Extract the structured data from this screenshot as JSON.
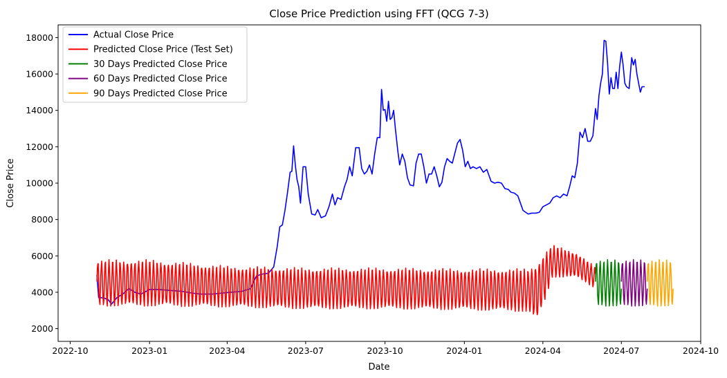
{
  "chart_data": {
    "type": "line",
    "title": "Close Price Prediction using FFT (QCG 7-3)",
    "xlabel": "Date",
    "ylabel": "Close Price",
    "xlim": [
      "2022-09-17",
      "2024-10-01"
    ],
    "ylim": [
      1300,
      18700
    ],
    "x_ticks": [
      "2022-10-01",
      "2023-01-01",
      "2023-04-01",
      "2023-07-01",
      "2023-10-01",
      "2024-01-01",
      "2024-04-01",
      "2024-07-01",
      "2024-10-01"
    ],
    "x_tick_labels": [
      "2022-10",
      "2023-01",
      "2023-04",
      "2023-07",
      "2023-10",
      "2024-01",
      "2024-04",
      "2024-07",
      "2024-10"
    ],
    "y_ticks": [
      2000,
      4000,
      6000,
      8000,
      10000,
      12000,
      14000,
      16000,
      18000
    ],
    "grid": false,
    "legend_position": "top-left",
    "series": [
      {
        "name": "Actual Close Price",
        "color": "#0000ff",
        "points": [
          [
            "2022-11-01",
            4950
          ],
          [
            "2022-11-03",
            3700
          ],
          [
            "2022-11-08",
            3700
          ],
          [
            "2022-11-14",
            3600
          ],
          [
            "2022-11-18",
            3350
          ],
          [
            "2022-11-24",
            3700
          ],
          [
            "2022-12-01",
            3900
          ],
          [
            "2022-12-08",
            4200
          ],
          [
            "2022-12-15",
            4000
          ],
          [
            "2022-12-22",
            3900
          ],
          [
            "2023-01-01",
            4150
          ],
          [
            "2023-01-12",
            4150
          ],
          [
            "2023-01-25",
            4100
          ],
          [
            "2023-02-08",
            4050
          ],
          [
            "2023-02-20",
            3950
          ],
          [
            "2023-03-01",
            3900
          ],
          [
            "2023-03-15",
            3900
          ],
          [
            "2023-03-25",
            3950
          ],
          [
            "2023-04-05",
            4000
          ],
          [
            "2023-04-18",
            4050
          ],
          [
            "2023-04-28",
            4200
          ],
          [
            "2023-05-05",
            4900
          ],
          [
            "2023-05-12",
            5000
          ],
          [
            "2023-05-19",
            5050
          ],
          [
            "2023-05-25",
            5400
          ],
          [
            "2023-05-29",
            6500
          ],
          [
            "2023-06-01",
            7600
          ],
          [
            "2023-06-04",
            7700
          ],
          [
            "2023-06-07",
            8500
          ],
          [
            "2023-06-10",
            9500
          ],
          [
            "2023-06-13",
            10600
          ],
          [
            "2023-06-15",
            10650
          ],
          [
            "2023-06-17",
            12050
          ],
          [
            "2023-06-19",
            11000
          ],
          [
            "2023-06-21",
            10200
          ],
          [
            "2023-06-23",
            9800
          ],
          [
            "2023-06-25",
            8900
          ],
          [
            "2023-06-28",
            10900
          ],
          [
            "2023-07-01",
            10900
          ],
          [
            "2023-07-04",
            9400
          ],
          [
            "2023-07-08",
            8300
          ],
          [
            "2023-07-12",
            8250
          ],
          [
            "2023-07-15",
            8550
          ],
          [
            "2023-07-19",
            8100
          ],
          [
            "2023-07-24",
            8200
          ],
          [
            "2023-07-28",
            8700
          ],
          [
            "2023-08-01",
            9400
          ],
          [
            "2023-08-04",
            8800
          ],
          [
            "2023-08-07",
            9200
          ],
          [
            "2023-08-11",
            9100
          ],
          [
            "2023-08-15",
            9800
          ],
          [
            "2023-08-18",
            10200
          ],
          [
            "2023-08-21",
            10900
          ],
          [
            "2023-08-24",
            10400
          ],
          [
            "2023-08-28",
            11950
          ],
          [
            "2023-09-01",
            11950
          ],
          [
            "2023-09-04",
            10800
          ],
          [
            "2023-09-07",
            10500
          ],
          [
            "2023-09-10",
            10650
          ],
          [
            "2023-09-13",
            11000
          ],
          [
            "2023-09-16",
            10500
          ],
          [
            "2023-09-19",
            11600
          ],
          [
            "2023-09-22",
            12500
          ],
          [
            "2023-09-25",
            12500
          ],
          [
            "2023-09-27",
            15150
          ],
          [
            "2023-09-29",
            14000
          ],
          [
            "2023-10-01",
            14050
          ],
          [
            "2023-10-03",
            13400
          ],
          [
            "2023-10-05",
            14500
          ],
          [
            "2023-10-07",
            13500
          ],
          [
            "2023-10-09",
            13600
          ],
          [
            "2023-10-11",
            14000
          ],
          [
            "2023-10-13",
            13000
          ],
          [
            "2023-10-16",
            11700
          ],
          [
            "2023-10-18",
            11000
          ],
          [
            "2023-10-21",
            11600
          ],
          [
            "2023-10-24",
            11200
          ],
          [
            "2023-10-27",
            10300
          ],
          [
            "2023-10-30",
            9900
          ],
          [
            "2023-11-03",
            9850
          ],
          [
            "2023-11-06",
            11100
          ],
          [
            "2023-11-09",
            11600
          ],
          [
            "2023-11-12",
            11600
          ],
          [
            "2023-11-15",
            10900
          ],
          [
            "2023-11-18",
            10000
          ],
          [
            "2023-11-21",
            10500
          ],
          [
            "2023-11-24",
            10500
          ],
          [
            "2023-11-27",
            10900
          ],
          [
            "2023-11-30",
            10400
          ],
          [
            "2023-12-03",
            9800
          ],
          [
            "2023-12-06",
            10050
          ],
          [
            "2023-12-09",
            10900
          ],
          [
            "2023-12-12",
            11350
          ],
          [
            "2023-12-15",
            11200
          ],
          [
            "2023-12-18",
            11100
          ],
          [
            "2023-12-21",
            11650
          ],
          [
            "2023-12-24",
            12200
          ],
          [
            "2023-12-27",
            12400
          ],
          [
            "2023-12-30",
            11800
          ],
          [
            "2024-01-02",
            10900
          ],
          [
            "2024-01-05",
            11200
          ],
          [
            "2024-01-08",
            10800
          ],
          [
            "2024-01-11",
            10900
          ],
          [
            "2024-01-15",
            10800
          ],
          [
            "2024-01-19",
            10900
          ],
          [
            "2024-01-23",
            10600
          ],
          [
            "2024-01-27",
            10750
          ],
          [
            "2024-02-01",
            10100
          ],
          [
            "2024-02-05",
            10000
          ],
          [
            "2024-02-09",
            10050
          ],
          [
            "2024-02-13",
            10000
          ],
          [
            "2024-02-17",
            9700
          ],
          [
            "2024-02-21",
            9650
          ],
          [
            "2024-02-24",
            9500
          ],
          [
            "2024-02-28",
            9450
          ],
          [
            "2024-03-03",
            9300
          ],
          [
            "2024-03-06",
            8900
          ],
          [
            "2024-03-09",
            8500
          ],
          [
            "2024-03-12",
            8400
          ],
          [
            "2024-03-15",
            8300
          ],
          [
            "2024-03-19",
            8350
          ],
          [
            "2024-03-24",
            8350
          ],
          [
            "2024-03-28",
            8400
          ],
          [
            "2024-04-01",
            8700
          ],
          [
            "2024-04-05",
            8800
          ],
          [
            "2024-04-09",
            8900
          ],
          [
            "2024-04-13",
            9200
          ],
          [
            "2024-04-17",
            9300
          ],
          [
            "2024-04-21",
            9200
          ],
          [
            "2024-04-25",
            9400
          ],
          [
            "2024-04-29",
            9300
          ],
          [
            "2024-05-02",
            9800
          ],
          [
            "2024-05-05",
            10400
          ],
          [
            "2024-05-08",
            10300
          ],
          [
            "2024-05-11",
            11100
          ],
          [
            "2024-05-14",
            12800
          ],
          [
            "2024-05-17",
            12500
          ],
          [
            "2024-05-20",
            13000
          ],
          [
            "2024-05-23",
            12300
          ],
          [
            "2024-05-26",
            12300
          ],
          [
            "2024-05-29",
            12600
          ],
          [
            "2024-06-01",
            14100
          ],
          [
            "2024-06-03",
            13500
          ],
          [
            "2024-06-05",
            14800
          ],
          [
            "2024-06-07",
            15500
          ],
          [
            "2024-06-09",
            16000
          ],
          [
            "2024-06-11",
            17850
          ],
          [
            "2024-06-13",
            17800
          ],
          [
            "2024-06-15",
            16600
          ],
          [
            "2024-06-17",
            14900
          ],
          [
            "2024-06-19",
            15800
          ],
          [
            "2024-06-21",
            15200
          ],
          [
            "2024-06-23",
            15200
          ],
          [
            "2024-06-25",
            16100
          ],
          [
            "2024-06-27",
            15200
          ],
          [
            "2024-06-29",
            16400
          ],
          [
            "2024-07-01",
            17200
          ],
          [
            "2024-07-03",
            16500
          ],
          [
            "2024-07-05",
            15500
          ],
          [
            "2024-07-07",
            15300
          ],
          [
            "2024-07-10",
            15200
          ],
          [
            "2024-07-13",
            16900
          ],
          [
            "2024-07-15",
            16500
          ],
          [
            "2024-07-17",
            16800
          ],
          [
            "2024-07-19",
            16000
          ],
          [
            "2024-07-21",
            15500
          ],
          [
            "2024-07-23",
            15000
          ],
          [
            "2024-07-25",
            15300
          ],
          [
            "2024-07-28",
            15300
          ]
        ]
      },
      {
        "name": "Predicted Close Price (Test Set)",
        "color": "#ff0000",
        "start": "2022-11-01",
        "end": "2024-06-01",
        "oscillation": {
          "anchors": [
            [
              "2022-11-01",
              4500,
              1300
            ],
            [
              "2023-01-01",
              4500,
              1300
            ],
            [
              "2023-04-01",
              4300,
              1150
            ],
            [
              "2023-07-01",
              4200,
              1150
            ],
            [
              "2023-10-01",
              4200,
              1150
            ],
            [
              "2024-01-01",
              4150,
              1150
            ],
            [
              "2024-03-15",
              4100,
              1200
            ],
            [
              "2024-03-25",
              4000,
              1600
            ],
            [
              "2024-04-03",
              4800,
              1400
            ],
            [
              "2024-04-12",
              5700,
              900
            ],
            [
              "2024-05-10",
              5500,
              700
            ],
            [
              "2024-06-01",
              4800,
              600
            ]
          ],
          "period_days": 4.3
        }
      },
      {
        "name": "30 Days Predicted Close Price",
        "color": "#008000",
        "start": "2024-06-01",
        "end": "2024-07-01",
        "oscillation": {
          "anchors": [
            [
              "2024-06-01",
              4500,
              1300
            ],
            [
              "2024-07-01",
              4500,
              1300
            ]
          ],
          "period_days": 4.3
        }
      },
      {
        "name": "60 Days Predicted Close Price",
        "color": "#800080",
        "start": "2024-07-01",
        "end": "2024-07-31",
        "oscillation": {
          "anchors": [
            [
              "2024-07-01",
              4500,
              1300
            ],
            [
              "2024-07-31",
              4500,
              1300
            ]
          ],
          "period_days": 4.3
        }
      },
      {
        "name": "90 Days Predicted Close Price",
        "color": "#ffa500",
        "start": "2024-07-31",
        "end": "2024-08-30",
        "oscillation": {
          "anchors": [
            [
              "2024-07-31",
              4500,
              1300
            ],
            [
              "2024-08-30",
              4500,
              1300
            ]
          ],
          "period_days": 4.3
        }
      }
    ]
  }
}
